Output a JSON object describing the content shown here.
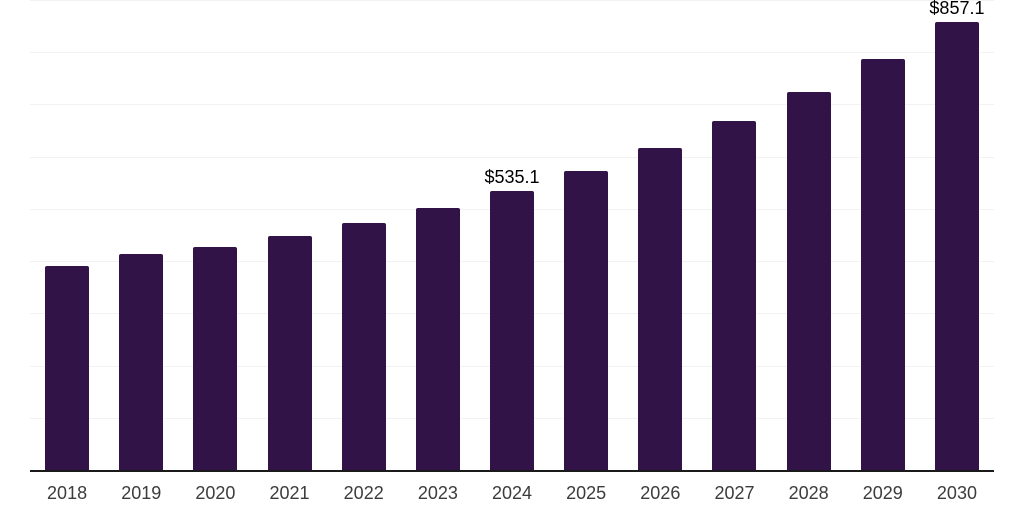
{
  "chart_data": {
    "type": "bar",
    "title": "",
    "xlabel": "",
    "ylabel": "",
    "categories": [
      "2018",
      "2019",
      "2020",
      "2021",
      "2022",
      "2023",
      "2024",
      "2025",
      "2026",
      "2027",
      "2028",
      "2029",
      "2030"
    ],
    "values": [
      391.2,
      414.0,
      427.6,
      448.7,
      473.7,
      502.4,
      535.1,
      573.4,
      617.5,
      667.4,
      723.0,
      786.3,
      857.1
    ],
    "data_labels": {
      "2024": "$535.1",
      "2030": "$857.1"
    },
    "ylim": [
      0,
      900
    ],
    "gridline_step": 100,
    "grid": "horizontal",
    "legend_position": "none",
    "y_axis_labels_shown": false,
    "colors": {
      "bar": "#321347",
      "gridline": "#f2f2f2",
      "axis_line": "#1a1a1a",
      "tick_label": "#3c3c3c",
      "value_label": "#000000",
      "background": "#ffffff"
    }
  }
}
